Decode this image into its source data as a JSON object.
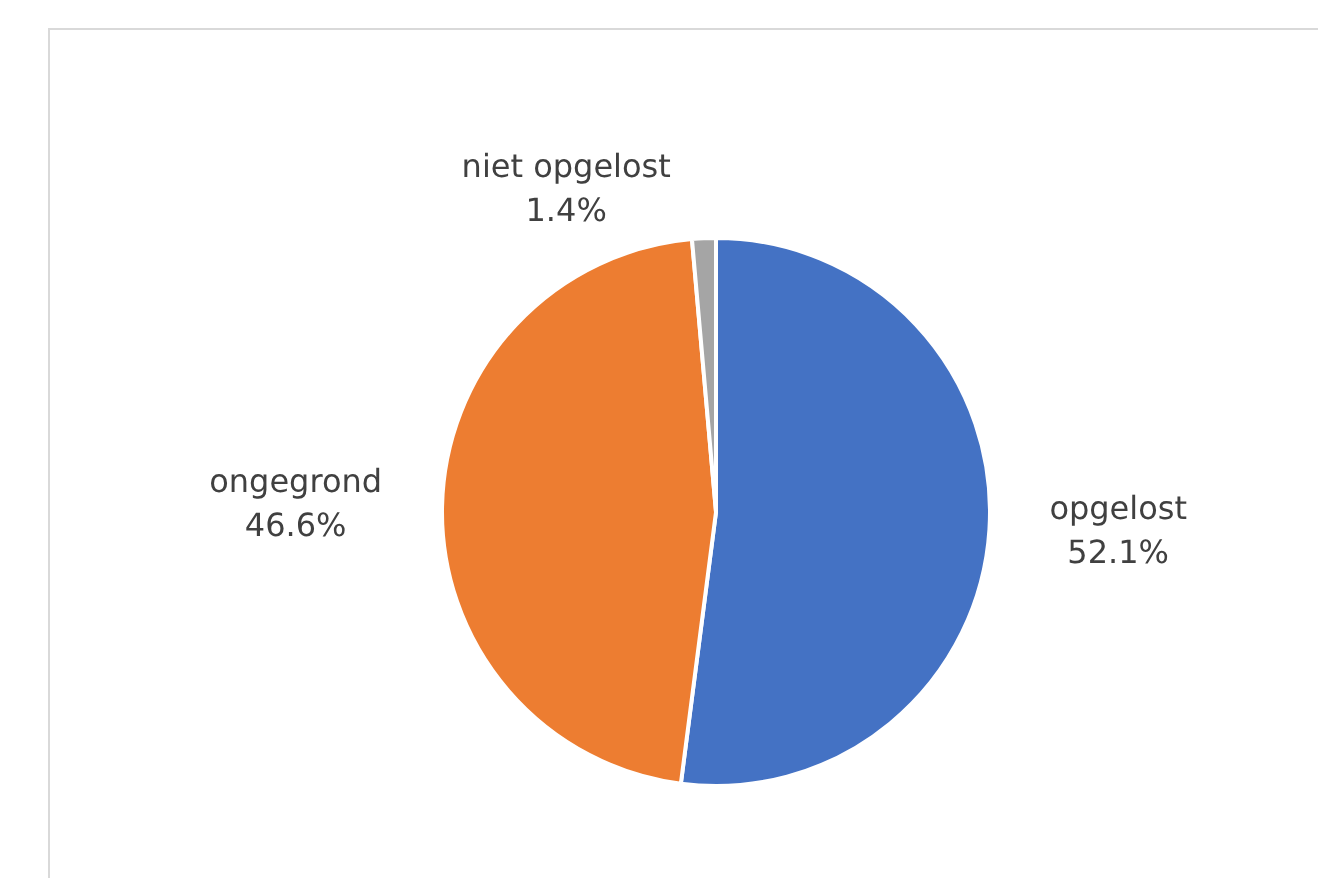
{
  "chart_data": {
    "type": "pie",
    "categories": [
      "opgelost",
      "ongegrond",
      "niet opgelost"
    ],
    "values": [
      52.1,
      46.6,
      1.4
    ],
    "value_labels": [
      "52.1%",
      "46.6%",
      "1.4%"
    ],
    "colors": [
      "#4472c4",
      "#ed7d31",
      "#a5a5a5"
    ],
    "legend": false
  }
}
